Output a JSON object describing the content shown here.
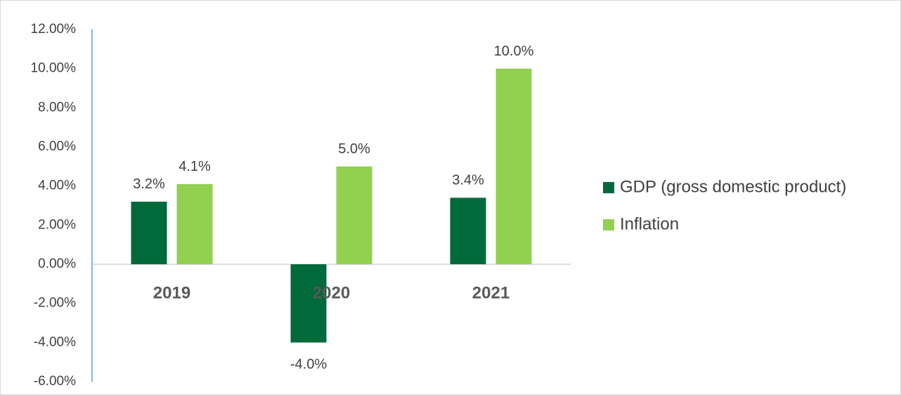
{
  "chart_data": {
    "type": "bar",
    "categories": [
      "2019",
      "2020",
      "2021"
    ],
    "series": [
      {
        "name": "GDP (gross domestic product)",
        "color": "#006a3b",
        "values": [
          3.2,
          -4.0,
          3.4
        ],
        "value_labels": [
          "3.2%",
          "-4.0%",
          "3.4%"
        ]
      },
      {
        "name": "Inflation",
        "color": "#92d050",
        "values": [
          4.1,
          5.0,
          10.0
        ],
        "value_labels": [
          "4.1%",
          "5.0%",
          "10.0%"
        ]
      }
    ],
    "ylim": [
      -6,
      12
    ],
    "yticks": [
      {
        "value": -6,
        "label": "-6.00%"
      },
      {
        "value": -4,
        "label": "-4.00%"
      },
      {
        "value": -2,
        "label": "-2.00%"
      },
      {
        "value": 0,
        "label": "0.00%"
      },
      {
        "value": 2,
        "label": "2.00%"
      },
      {
        "value": 4,
        "label": "4.00%"
      },
      {
        "value": 6,
        "label": "6.00%"
      },
      {
        "value": 8,
        "label": "8.00%"
      },
      {
        "value": 10,
        "label": "10.00%"
      },
      {
        "value": 12,
        "label": "12.00%"
      }
    ],
    "grid": false,
    "legend": "right"
  }
}
